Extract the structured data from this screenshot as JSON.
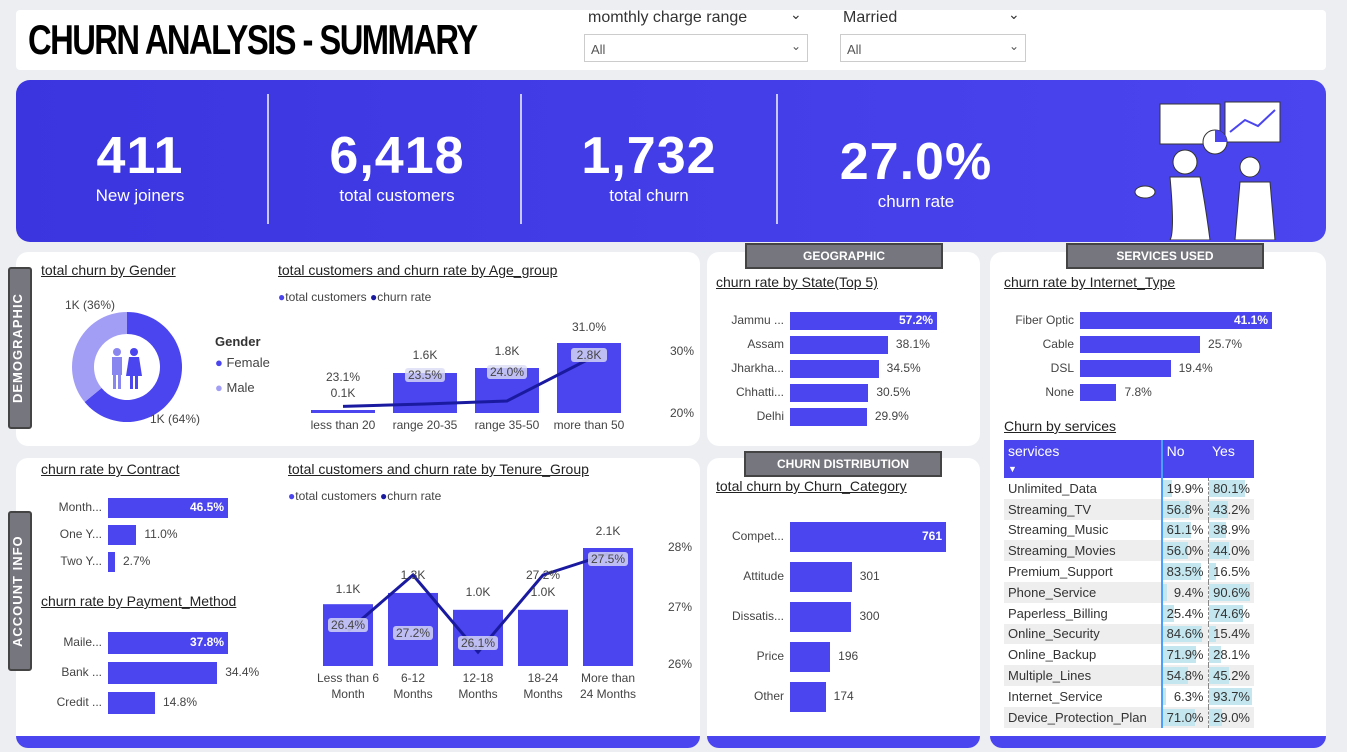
{
  "header": {
    "title": "CHURN ANALYSIS - SUMMARY",
    "filters": [
      {
        "label": "momthly charge range",
        "value": "All"
      },
      {
        "label": "Married",
        "value": "All"
      }
    ]
  },
  "kpis": [
    {
      "value": "411",
      "label": "New joiners"
    },
    {
      "value": "6,418",
      "label": "total customers"
    },
    {
      "value": "1,732",
      "label": "total churn"
    },
    {
      "value": "27.0%",
      "label": "churn rate"
    }
  ],
  "sections": {
    "demographic": "DEMOGRAPHIC",
    "account": "ACCOUNT INFO",
    "geographic": "GEOGRAPHIC",
    "services": "SERVICES USED",
    "distribution": "CHURN DISTRIBUTION"
  },
  "colors": {
    "accent": "#4b45ef",
    "line": "#1a1aa0",
    "light": "#a39ef5"
  },
  "chart_data": [
    {
      "type": "pie",
      "title": "total churn by Gender",
      "legend_title": "Gender",
      "categories": [
        "Female",
        "Male"
      ],
      "values": [
        64,
        36
      ],
      "labels": [
        "1K (64%)",
        "1K (36%)"
      ],
      "legend": [
        "Female",
        "Male"
      ]
    },
    {
      "type": "bar",
      "title": "total customers and churn rate by Age_group",
      "legend": [
        "total customers",
        "churn rate"
      ],
      "categories": [
        "less than 20",
        "range 20-35",
        "range 35-50",
        "more than 50"
      ],
      "series": [
        {
          "name": "total customers",
          "values": [
            0.1,
            1.6,
            1.8,
            2.8
          ],
          "labels": [
            "0.1K",
            "1.6K",
            "1.8K",
            "2.8K"
          ]
        },
        {
          "name": "churn rate",
          "values": [
            23.1,
            23.5,
            24.0,
            31.0
          ],
          "labels": [
            "23.1%",
            "23.5%",
            "24.0%",
            "31.0%"
          ]
        }
      ],
      "y2_ticks": [
        "30%",
        "20%"
      ]
    },
    {
      "type": "bar",
      "title": "churn rate by Contract",
      "categories": [
        "Month...",
        "One Y...",
        "Two Y..."
      ],
      "values": [
        46.5,
        11.0,
        2.7
      ],
      "labels": [
        "46.5%",
        "11.0%",
        "2.7%"
      ]
    },
    {
      "type": "bar",
      "title": "churn rate by Payment_Method",
      "categories": [
        "Maile...",
        "Bank ...",
        "Credit ..."
      ],
      "values": [
        37.8,
        34.4,
        14.8
      ],
      "labels": [
        "37.8%",
        "34.4%",
        "14.8%"
      ]
    },
    {
      "type": "bar",
      "title": "total customers and churn rate by Tenure_Group",
      "legend": [
        "total customers",
        "churn rate"
      ],
      "categories": [
        "Less than 6 Month",
        "6-12 Months",
        "12-18 Months",
        "18-24 Months",
        "More than 24 Months"
      ],
      "series": [
        {
          "name": "total customers",
          "values": [
            1.1,
            1.3,
            1.0,
            1.0,
            2.1
          ],
          "labels": [
            "1.1K",
            "1.3K",
            "1.0K",
            "1.0K",
            "2.1K"
          ]
        },
        {
          "name": "churn rate",
          "values": [
            26.4,
            27.2,
            26.1,
            27.2,
            27.5
          ],
          "labels": [
            "26.4%",
            "27.2%",
            "26.1%",
            "27.2%",
            "27.5%"
          ]
        }
      ],
      "y2_ticks": [
        "28%",
        "27%",
        "26%"
      ]
    },
    {
      "type": "bar",
      "title": "churn rate by State(Top 5)",
      "categories": [
        "Jammu ...",
        "Assam",
        "Jharkha...",
        "Chhatti...",
        "Delhi"
      ],
      "values": [
        57.2,
        38.1,
        34.5,
        30.5,
        29.9
      ],
      "labels": [
        "57.2%",
        "38.1%",
        "34.5%",
        "30.5%",
        "29.9%"
      ]
    },
    {
      "type": "bar",
      "title": "total churn by Churn_Category",
      "categories": [
        "Compet...",
        "Attitude",
        "Dissatis...",
        "Price",
        "Other"
      ],
      "values": [
        761,
        301,
        300,
        196,
        174
      ],
      "labels": [
        "761",
        "301",
        "300",
        "196",
        "174"
      ]
    },
    {
      "type": "bar",
      "title": "churn rate by Internet_Type",
      "categories": [
        "Fiber Optic",
        "Cable",
        "DSL",
        "None"
      ],
      "values": [
        41.1,
        25.7,
        19.4,
        7.8
      ],
      "labels": [
        "41.1%",
        "25.7%",
        "19.4%",
        "7.8%"
      ]
    },
    {
      "type": "table",
      "title": "Churn by services",
      "columns": [
        "services",
        "No",
        "Yes"
      ],
      "rows": [
        [
          "Unlimited_Data",
          "19.9%",
          "80.1%"
        ],
        [
          "Streaming_TV",
          "56.8%",
          "43.2%"
        ],
        [
          "Streaming_Music",
          "61.1%",
          "38.9%"
        ],
        [
          "Streaming_Movies",
          "56.0%",
          "44.0%"
        ],
        [
          "Premium_Support",
          "83.5%",
          "16.5%"
        ],
        [
          "Phone_Service",
          "9.4%",
          "90.6%"
        ],
        [
          "Paperless_Billing",
          "25.4%",
          "74.6%"
        ],
        [
          "Online_Security",
          "84.6%",
          "15.4%"
        ],
        [
          "Online_Backup",
          "71.9%",
          "28.1%"
        ],
        [
          "Multiple_Lines",
          "54.8%",
          "45.2%"
        ],
        [
          "Internet_Service",
          "6.3%",
          "93.7%"
        ],
        [
          "Device_Protection_Plan",
          "71.0%",
          "29.0%"
        ]
      ]
    }
  ]
}
